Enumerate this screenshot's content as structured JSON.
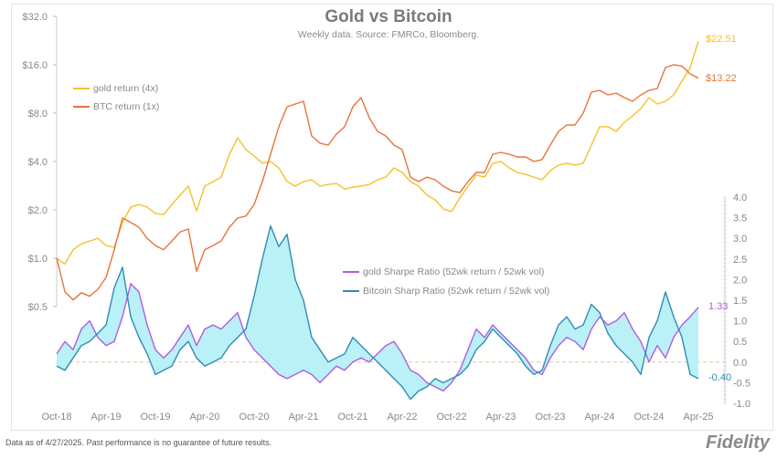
{
  "title": "Gold vs Bitcoin",
  "subtitle": "Weekly data.  Source: FMRCo, Bloomberg.",
  "footer": "Data as of 4/27/2025. Past performance is no guarantee of future results.",
  "logo": "Fidelity INVESTMENTS",
  "chart_data": {
    "type": "line",
    "x_ticks": [
      "Oct-18",
      "Apr-19",
      "Oct-19",
      "Apr-20",
      "Oct-20",
      "Apr-21",
      "Oct-21",
      "Apr-22",
      "Oct-22",
      "Apr-23",
      "Oct-23",
      "Apr-24",
      "Oct-24",
      "Apr-25"
    ],
    "x_start": "Oct-18",
    "x_step": "monthly",
    "left_axis": {
      "scale": "log2",
      "ticks": [
        "$0.5",
        "$1.0",
        "$2.0",
        "$4.0",
        "$8.0",
        "$16.0",
        "$32.0"
      ],
      "range": [
        0.5,
        32
      ]
    },
    "right_axis": {
      "scale": "linear",
      "ticks": [
        "-1.0",
        "-0.5",
        "0.0",
        "0.5",
        "1.0",
        "1.5",
        "2.0",
        "2.5",
        "3.0",
        "3.5",
        "4.0"
      ],
      "range": [
        -1,
        4
      ]
    },
    "series": [
      {
        "name": "gold return (4x)",
        "axis": "left",
        "color": "#f3c12b",
        "end_label": "$22.51",
        "values": [
          1.0,
          0.92,
          1.13,
          1.23,
          1.28,
          1.33,
          1.2,
          1.17,
          1.67,
          2.08,
          2.16,
          2.08,
          1.9,
          1.87,
          2.16,
          2.47,
          2.81,
          1.97,
          2.81,
          3.0,
          3.2,
          4.44,
          5.62,
          4.74,
          4.33,
          3.9,
          4.0,
          3.65,
          3.0,
          2.81,
          3.0,
          3.08,
          2.81,
          2.88,
          2.92,
          2.7,
          2.77,
          2.81,
          2.88,
          3.08,
          3.2,
          3.65,
          3.42,
          3.0,
          2.81,
          2.47,
          2.31,
          2.03,
          1.95,
          2.37,
          2.81,
          3.29,
          3.2,
          3.9,
          4.0,
          3.65,
          3.42,
          3.33,
          3.2,
          3.08,
          3.51,
          3.8,
          3.9,
          3.8,
          3.9,
          5.06,
          6.58,
          6.58,
          6.16,
          7.02,
          7.69,
          8.54,
          9.99,
          9.12,
          9.48,
          10.39,
          12.65,
          15.38,
          22.51
        ]
      },
      {
        "name": "BTC return (1x)",
        "axis": "left",
        "color": "#e8743b",
        "end_label": "$13.22",
        "values": [
          1.0,
          0.62,
          0.55,
          0.61,
          0.58,
          0.64,
          0.76,
          1.13,
          1.78,
          1.67,
          1.56,
          1.33,
          1.2,
          1.13,
          1.28,
          1.46,
          1.52,
          0.83,
          1.13,
          1.2,
          1.28,
          1.56,
          1.78,
          1.83,
          2.16,
          3.0,
          4.44,
          6.58,
          8.77,
          9.12,
          9.48,
          5.77,
          5.2,
          5.06,
          5.92,
          6.58,
          8.77,
          9.99,
          7.49,
          6.16,
          5.77,
          5.06,
          4.74,
          3.2,
          3.0,
          3.2,
          3.08,
          2.81,
          2.63,
          2.56,
          3.0,
          3.42,
          3.42,
          4.44,
          4.56,
          4.44,
          4.27,
          4.27,
          4.0,
          4.11,
          5.06,
          6.16,
          6.75,
          6.75,
          8.0,
          10.81,
          11.09,
          10.39,
          10.67,
          9.99,
          9.48,
          10.39,
          11.09,
          11.39,
          15.38,
          16.0,
          15.7,
          14.04,
          13.22
        ]
      },
      {
        "name": "gold Sharpe Ratio (52wk return / 52wk vol)",
        "axis": "right",
        "color": "#b05ce0",
        "end_label": "1.33",
        "values": [
          0.2,
          0.5,
          0.3,
          0.8,
          1.0,
          0.6,
          0.4,
          0.5,
          1.1,
          1.9,
          1.7,
          0.9,
          0.3,
          0.1,
          0.3,
          0.6,
          0.9,
          0.4,
          0.8,
          0.9,
          0.8,
          1.0,
          1.2,
          0.6,
          0.3,
          0.1,
          -0.1,
          -0.3,
          -0.4,
          -0.3,
          -0.2,
          -0.3,
          -0.5,
          -0.3,
          -0.1,
          -0.2,
          0.0,
          0.1,
          0.0,
          0.2,
          0.4,
          0.5,
          0.2,
          -0.2,
          -0.3,
          -0.5,
          -0.6,
          -0.7,
          -0.5,
          -0.2,
          0.3,
          0.8,
          0.6,
          0.9,
          0.7,
          0.5,
          0.3,
          0.1,
          -0.2,
          -0.3,
          0.1,
          0.4,
          0.6,
          0.5,
          0.3,
          0.8,
          1.1,
          0.9,
          1.0,
          1.2,
          0.8,
          0.5,
          0.0,
          0.4,
          0.1,
          0.6,
          0.9,
          1.1,
          1.33
        ]
      },
      {
        "name": "Bitcoin Sharp Ratio (52wk return / 52wk vol)",
        "axis": "right",
        "color": "#2f8cb6",
        "end_label": "-0.40",
        "values": [
          -0.1,
          -0.2,
          0.1,
          0.4,
          0.5,
          0.7,
          0.9,
          1.8,
          2.3,
          1.1,
          0.6,
          0.2,
          -0.3,
          -0.2,
          -0.1,
          0.3,
          0.5,
          0.1,
          -0.1,
          0.0,
          0.1,
          0.4,
          0.6,
          0.8,
          1.6,
          2.5,
          3.3,
          2.8,
          3.1,
          2.0,
          1.5,
          0.6,
          0.3,
          0.0,
          0.1,
          0.2,
          0.6,
          0.4,
          0.2,
          0.0,
          -0.2,
          -0.4,
          -0.6,
          -0.9,
          -0.7,
          -0.6,
          -0.4,
          -0.5,
          -0.4,
          -0.3,
          -0.1,
          0.3,
          0.5,
          0.8,
          0.6,
          0.4,
          0.2,
          -0.1,
          -0.3,
          -0.2,
          0.4,
          0.9,
          1.1,
          0.8,
          0.9,
          1.4,
          1.2,
          0.7,
          0.4,
          0.2,
          0.0,
          -0.3,
          0.6,
          1.0,
          1.7,
          1.1,
          0.6,
          -0.3,
          -0.4
        ]
      }
    ],
    "fill_between_sharpe_color": "#b9f1f6",
    "zero_line": "dashed",
    "grid": false,
    "legend": "top-left (returns), center-right (sharpe)"
  }
}
